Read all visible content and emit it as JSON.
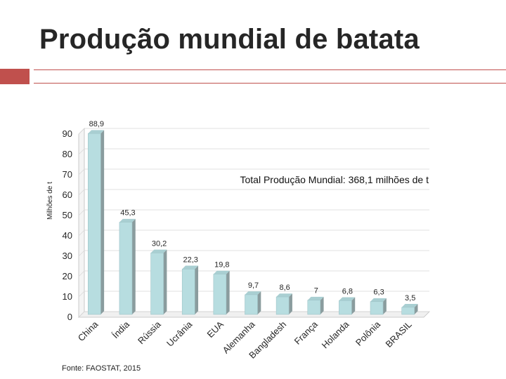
{
  "slide": {
    "title": "Produção mundial de batata",
    "source": "Fonte: FAOSTAT, 2015"
  },
  "colors": {
    "accent": "#c0504d",
    "accent_border": "#8c2f2c",
    "bar_front": "#b7dde0",
    "bar_side": "#8a9c9e",
    "bar_top": "#a9cfd2",
    "grid": "#d9d9d9",
    "text": "#262626"
  },
  "chart_data": {
    "type": "bar",
    "title": "",
    "annotation": "Total Produção Mundial: 368,1 milhões de t",
    "xlabel": "",
    "ylabel": "Milhões de t",
    "ylim": [
      0,
      90
    ],
    "yticks": [
      "0",
      "10",
      "20",
      "30",
      "40",
      "50",
      "60",
      "70",
      "80",
      "90"
    ],
    "grid": true,
    "categories": [
      "China",
      "Índia",
      "Rússia",
      "Ucrânia",
      "EUA",
      "Alemanha",
      "Bangladesh",
      "França",
      "Holanda",
      "Polônia",
      "BRASIL"
    ],
    "values": [
      88.9,
      45.3,
      30.2,
      22.3,
      19.8,
      9.7,
      8.6,
      7,
      6.8,
      6.3,
      3.5
    ],
    "value_labels": [
      "88,9",
      "45,3",
      "30,2",
      "22,3",
      "19,8",
      "9,7",
      "8,6",
      "7",
      "6,8",
      "6,3",
      "3,5"
    ]
  }
}
